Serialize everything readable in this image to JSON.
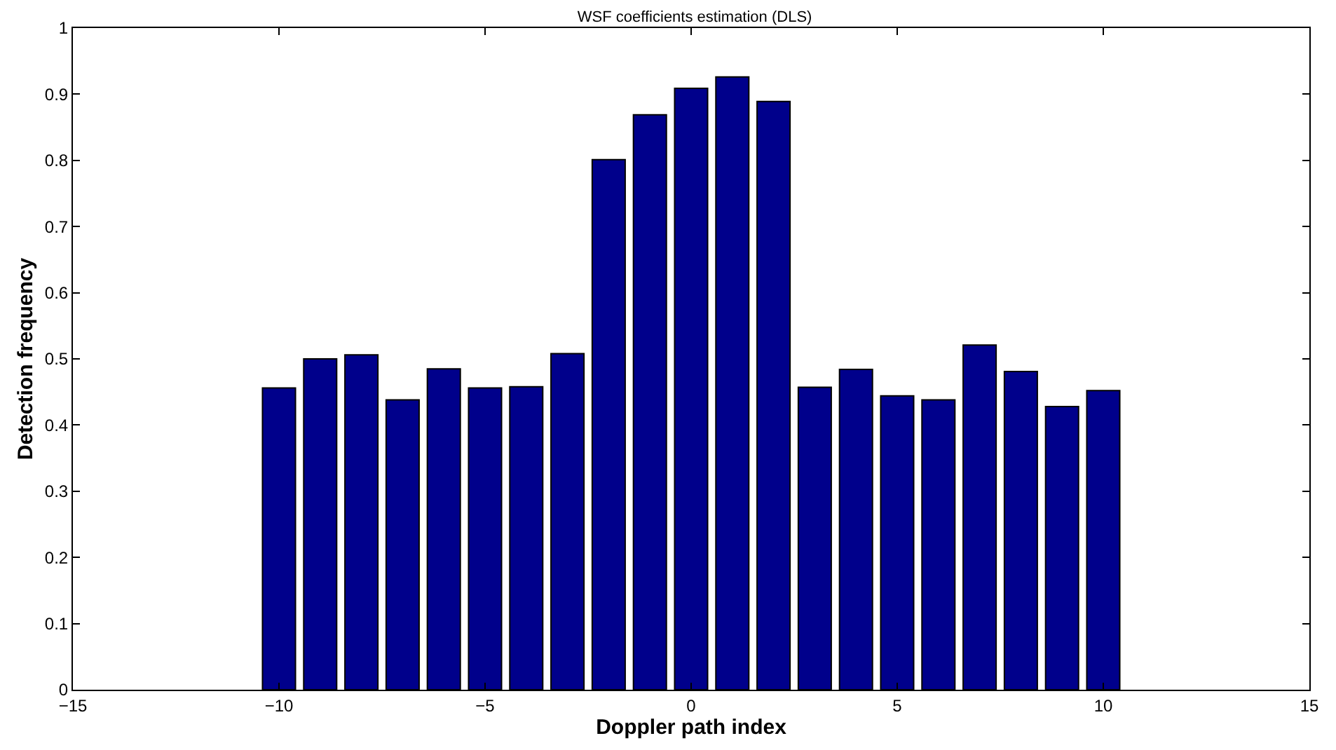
{
  "chart_data": {
    "type": "bar",
    "title": "WSF coefficients estimation (DLS)",
    "xlabel": "Doppler path index",
    "ylabel": "Detection frequency",
    "x": [
      -10,
      -9,
      -8,
      -7,
      -6,
      -5,
      -4,
      -3,
      -2,
      -1,
      0,
      1,
      2,
      3,
      4,
      5,
      6,
      7,
      8,
      9,
      10
    ],
    "series": [
      {
        "color": "#00008b",
        "values": [
          0.456,
          0.5,
          0.506,
          0.438,
          0.485,
          0.456,
          0.458,
          0.508,
          0.801,
          0.869,
          0.909,
          0.926,
          0.889,
          0.457,
          0.484,
          0.444,
          0.438,
          0.521,
          0.481,
          0.428,
          0.452
        ]
      }
    ],
    "xlim": [
      -15,
      15
    ],
    "xticks": [
      {
        "value": -15,
        "label": "−15"
      },
      {
        "value": -10,
        "label": "−10"
      },
      {
        "value": -5,
        "label": "−5"
      },
      0,
      5,
      10,
      15
    ],
    "ylim": [
      0,
      1
    ],
    "yticks": [
      0,
      0.1,
      0.2,
      0.3,
      0.4,
      0.5,
      0.6,
      0.7,
      0.8,
      0.9,
      1
    ]
  }
}
